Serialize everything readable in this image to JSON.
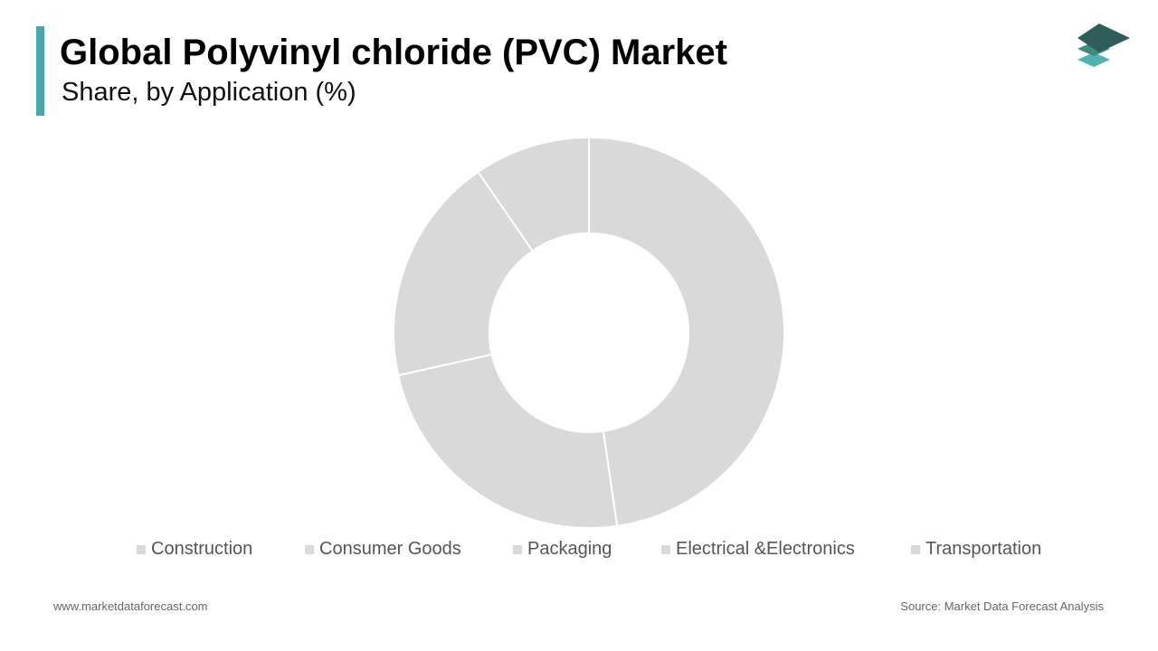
{
  "chart_data": {
    "type": "donut",
    "title": "Global Polyvinyl chloride (PVC) Market",
    "subtitle": "Share, by Application (%)",
    "categories": [
      "Construction",
      "Consumer Goods",
      "Packaging",
      "Electrical &Electronics",
      "Transportation"
    ],
    "values": [
      47.7,
      23.8,
      18.9,
      9.6,
      0
    ],
    "colors": [
      "#d9d9d9",
      "#d9d9d9",
      "#d9d9d9",
      "#d9d9d9",
      "#d9d9d9"
    ]
  },
  "footer": {
    "website": "www.marketdataforecast.com",
    "source": "Source: Market Data Forecast Analysis"
  }
}
